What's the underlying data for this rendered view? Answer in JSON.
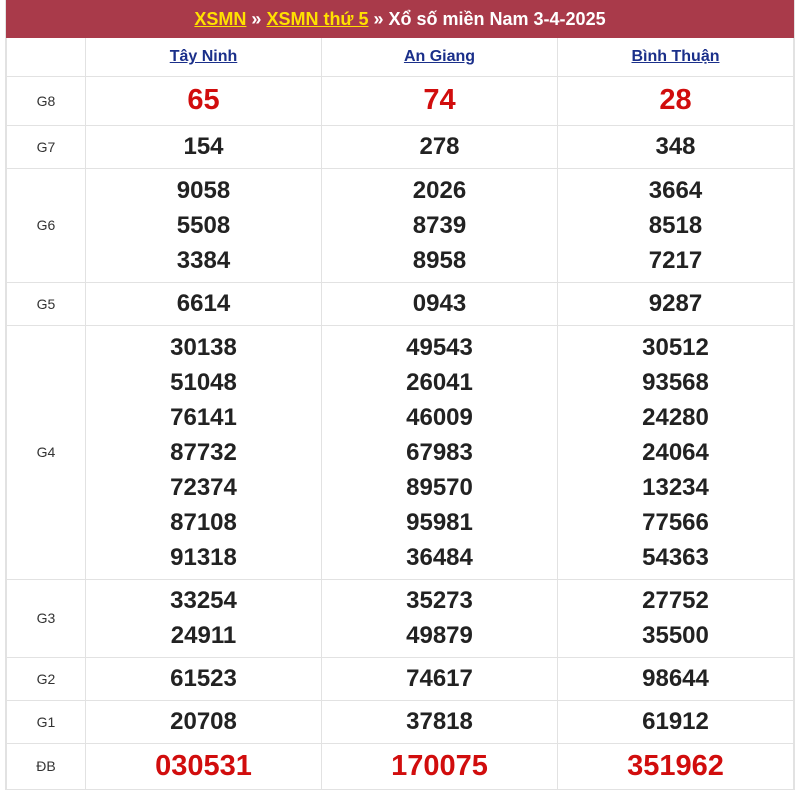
{
  "header": {
    "link1": "XSMN",
    "sep1": " » ",
    "link2": "XSMN thứ 5",
    "sep2": " » ",
    "title": "Xổ số miền Nam 3-4-2025"
  },
  "provinces": [
    "Tây Ninh",
    "An Giang",
    "Bình Thuận"
  ],
  "colors": {
    "header_bg": "#a93a4a",
    "link_yellow": "#ffe000",
    "special_red": "#d10d0d",
    "province_link": "#1a2f8a"
  },
  "prizes": [
    {
      "label": "G8",
      "red": true,
      "h": 49,
      "values": [
        [
          "65"
        ],
        [
          "74"
        ],
        [
          "28"
        ]
      ]
    },
    {
      "label": "G7",
      "h": 43,
      "values": [
        [
          "154"
        ],
        [
          "278"
        ],
        [
          "348"
        ]
      ]
    },
    {
      "label": "G6",
      "h": 114,
      "values": [
        [
          "9058",
          "5508",
          "3384"
        ],
        [
          "2026",
          "8739",
          "8958"
        ],
        [
          "3664",
          "8518",
          "7217"
        ]
      ]
    },
    {
      "label": "G5",
      "h": 43,
      "values": [
        [
          "6614"
        ],
        [
          "0943"
        ],
        [
          "9287"
        ]
      ]
    },
    {
      "label": "G4",
      "h": 254,
      "values": [
        [
          "30138",
          "51048",
          "76141",
          "87732",
          "72374",
          "87108",
          "91318"
        ],
        [
          "49543",
          "26041",
          "46009",
          "67983",
          "89570",
          "95981",
          "36484"
        ],
        [
          "30512",
          "93568",
          "24280",
          "24064",
          "13234",
          "77566",
          "54363"
        ]
      ]
    },
    {
      "label": "G3",
      "h": 78,
      "values": [
        [
          "33254",
          "24911"
        ],
        [
          "35273",
          "49879"
        ],
        [
          "27752",
          "35500"
        ]
      ]
    },
    {
      "label": "G2",
      "h": 43,
      "values": [
        [
          "61523"
        ],
        [
          "74617"
        ],
        [
          "98644"
        ]
      ]
    },
    {
      "label": "G1",
      "h": 43,
      "values": [
        [
          "20708"
        ],
        [
          "37818"
        ],
        [
          "61912"
        ]
      ]
    },
    {
      "label": "ĐB",
      "red": true,
      "h": 46,
      "values": [
        [
          "030531"
        ],
        [
          "170075"
        ],
        [
          "351962"
        ]
      ]
    }
  ]
}
